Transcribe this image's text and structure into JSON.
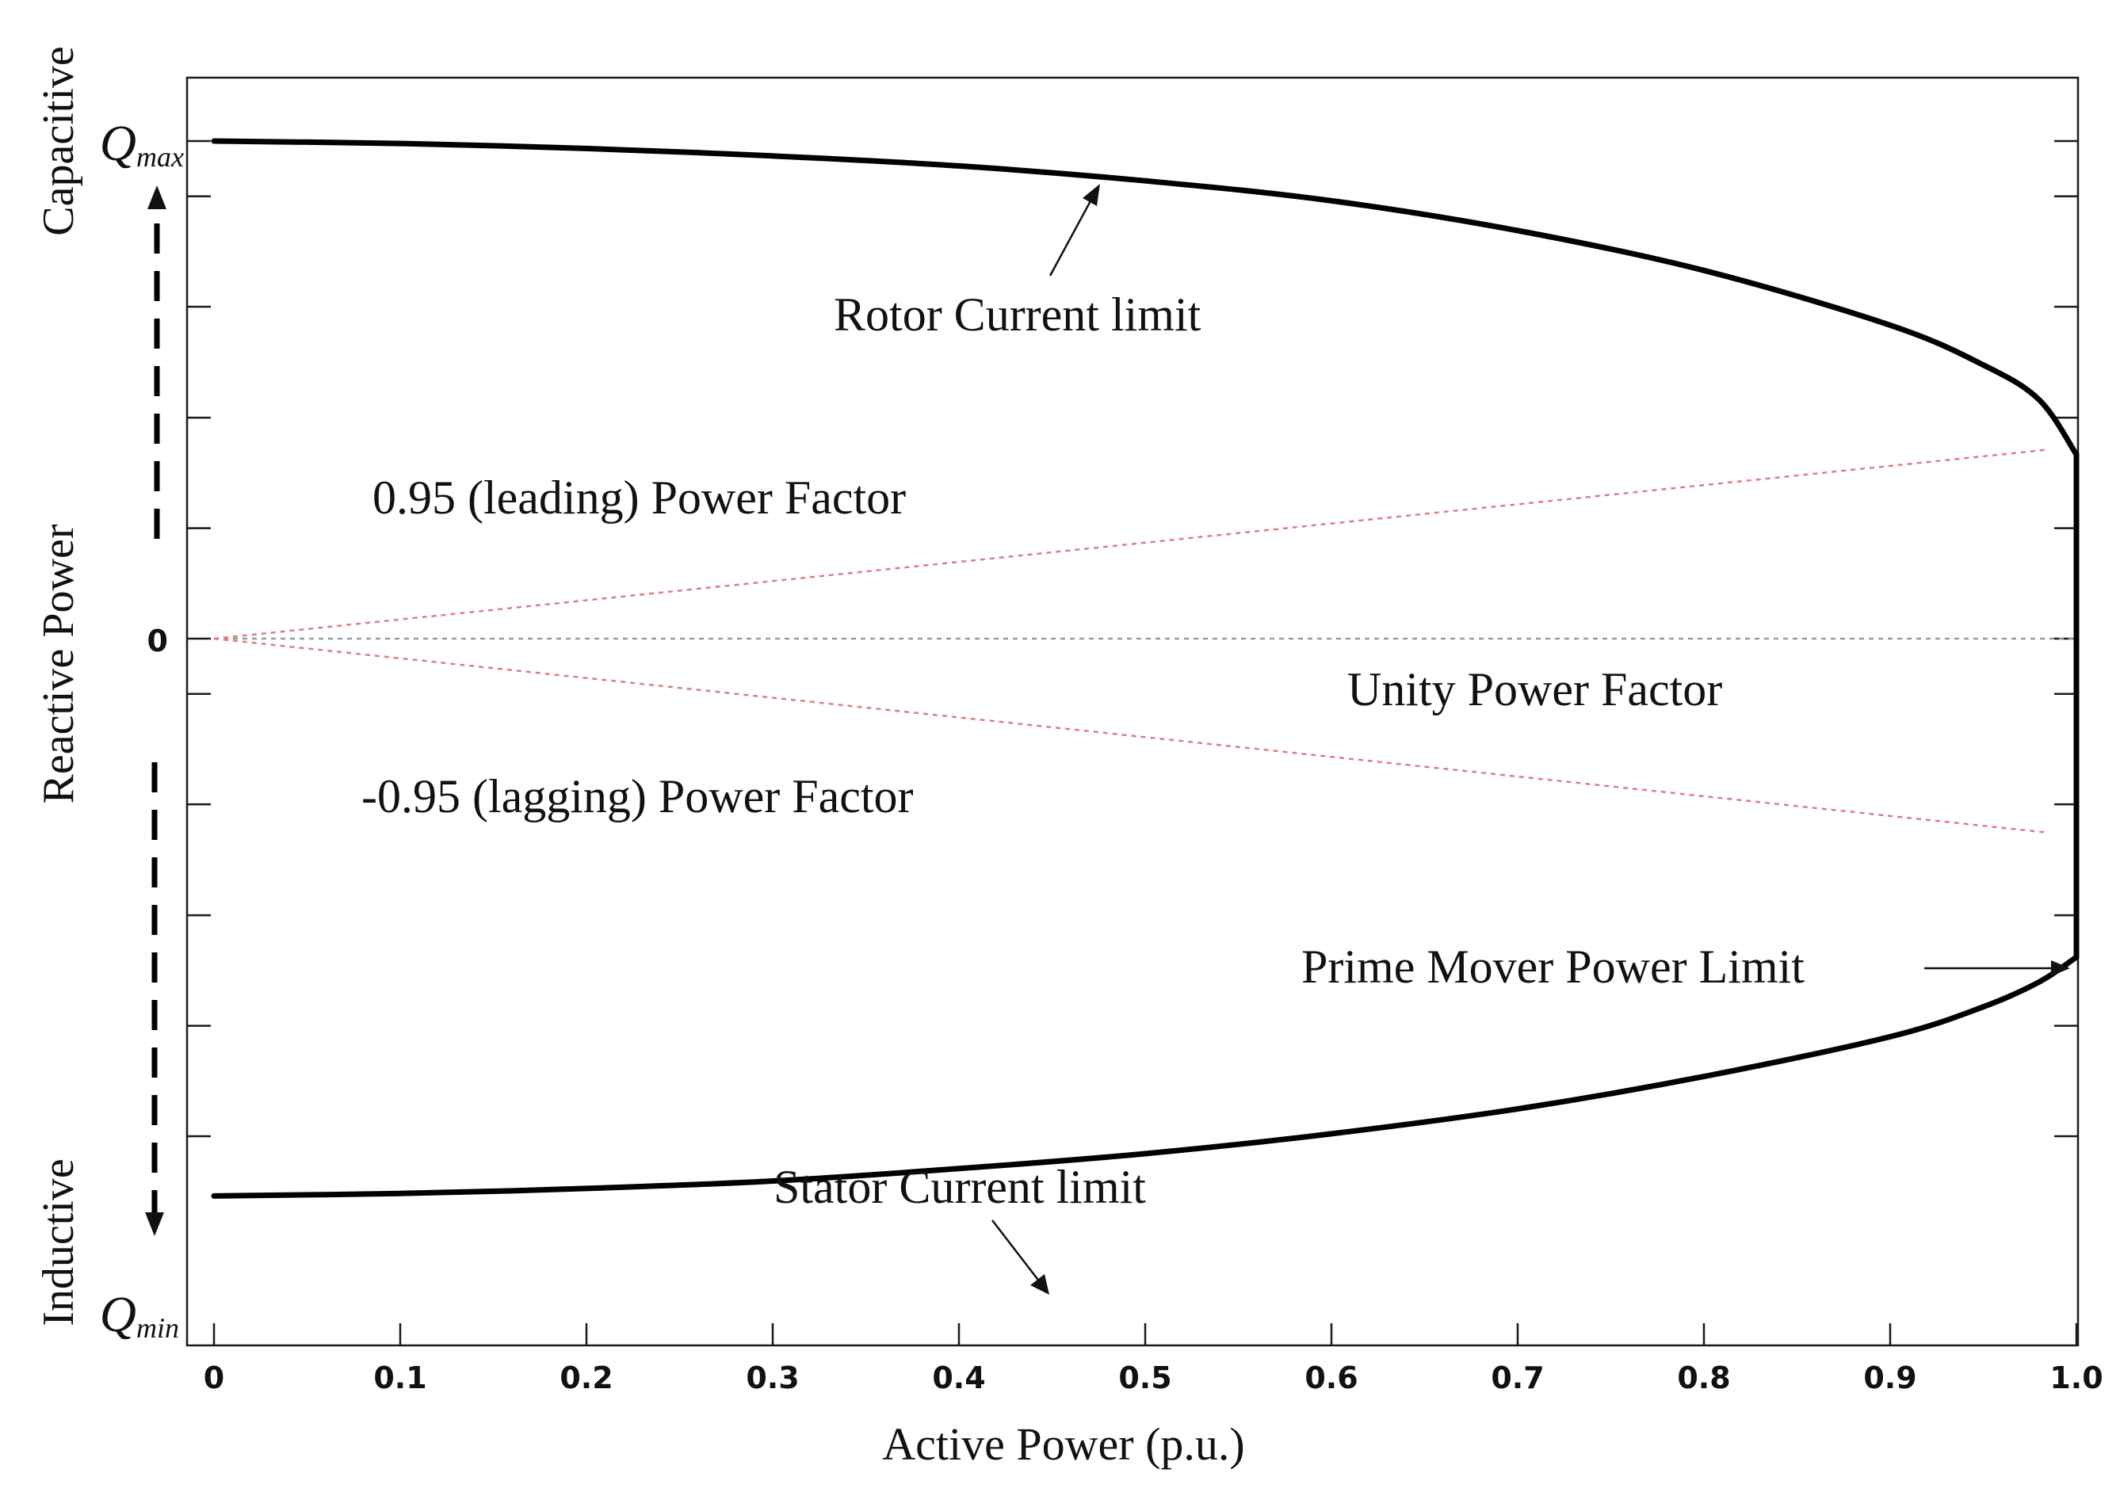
{
  "chart_data": {
    "type": "line",
    "title": "",
    "xlabel": "Active Power (p.u.)",
    "ylabel": "Reactive Power",
    "xlim": [
      0,
      1.0
    ],
    "ylim_labels": {
      "top": "Q",
      "top_sub": "max",
      "bottom": "Q",
      "bottom_sub": "min",
      "zero": "0"
    },
    "x_ticks": [
      {
        "value": 0,
        "label": "0"
      },
      {
        "value": 0.1,
        "label": "0.1"
      },
      {
        "value": 0.2,
        "label": "0.2"
      },
      {
        "value": 0.3,
        "label": "0.3"
      },
      {
        "value": 0.4,
        "label": "0.4"
      },
      {
        "value": 0.5,
        "label": "0.5"
      },
      {
        "value": 0.6,
        "label": "0.6"
      },
      {
        "value": 0.7,
        "label": "0.7"
      },
      {
        "value": 0.8,
        "label": "0.8"
      },
      {
        "value": 0.9,
        "label": "0.9"
      },
      {
        "value": 1.0,
        "label": "1.0"
      }
    ],
    "y_range_normalized": [
      -1,
      1
    ],
    "y_ticks_normalized": [
      -1,
      -0.778,
      -0.556,
      -0.333,
      -0.111,
      0,
      0.222,
      0.444,
      0.667,
      0.889,
      1
    ],
    "side_labels": {
      "upper": "Capacitive",
      "lower": "Inductive"
    },
    "series": [
      {
        "name": "Rotor Current limit",
        "style": "solid-thick",
        "x": [
          0,
          0.1,
          0.2,
          0.3,
          0.4,
          0.5,
          0.6,
          0.7,
          0.8,
          0.9,
          0.95,
          0.98,
          1.0
        ],
        "y": [
          1.0,
          0.995,
          0.985,
          0.97,
          0.95,
          0.92,
          0.88,
          0.82,
          0.74,
          0.63,
          0.55,
          0.48,
          0.37
        ]
      },
      {
        "name": "Stator Current limit",
        "style": "solid-thick",
        "x": [
          0,
          0.1,
          0.2,
          0.3,
          0.4,
          0.5,
          0.6,
          0.7,
          0.8,
          0.9,
          0.95,
          0.98,
          1.0
        ],
        "y": [
          -1.12,
          -1.115,
          -1.105,
          -1.09,
          -1.065,
          -1.035,
          -0.995,
          -0.945,
          -0.88,
          -0.8,
          -0.74,
          -0.69,
          -0.64
        ]
      },
      {
        "name": "Prime Mover Power Limit",
        "style": "solid-thick",
        "x": [
          1.0,
          1.0
        ],
        "y": [
          0.37,
          -0.64
        ]
      },
      {
        "name": "0.95 (leading) Power Factor",
        "style": "dotted-red",
        "x": [
          0,
          0.985
        ],
        "y": [
          0,
          0.38
        ]
      },
      {
        "name": "-0.95 (lagging) Power Factor",
        "style": "dotted-red",
        "x": [
          0,
          0.985
        ],
        "y": [
          0,
          -0.39
        ]
      },
      {
        "name": "Unity Power Factor",
        "style": "dotted-gray",
        "x": [
          0,
          1.0
        ],
        "y": [
          0,
          0
        ]
      }
    ],
    "annotations": [
      {
        "id": "rotor",
        "text": "Rotor Current limit"
      },
      {
        "id": "leading",
        "text": "0.95 (leading) Power Factor"
      },
      {
        "id": "unity",
        "text": "Unity Power Factor"
      },
      {
        "id": "lagging",
        "text": "-0.95 (lagging) Power Factor"
      },
      {
        "id": "prime",
        "text": "Prime Mover Power Limit"
      },
      {
        "id": "stator",
        "text": "Stator Current limit"
      }
    ]
  }
}
